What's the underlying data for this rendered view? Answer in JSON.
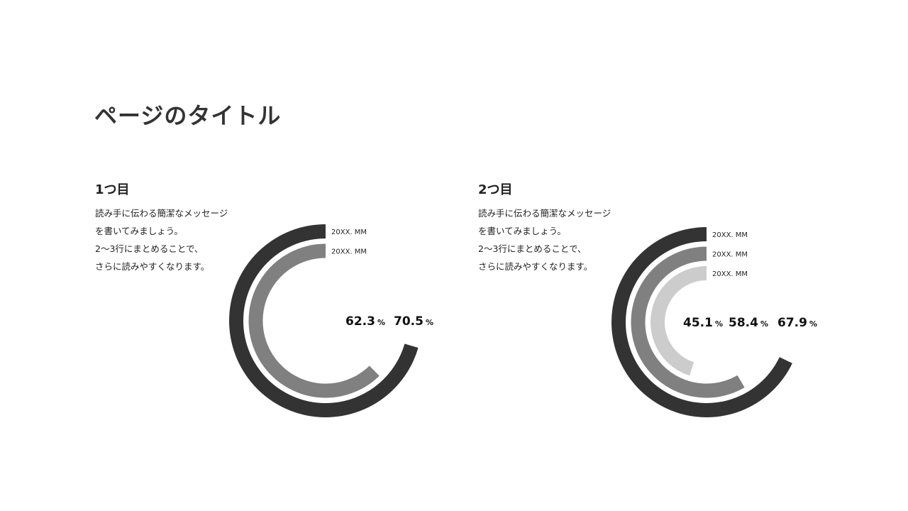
{
  "title": "ページのタイトル",
  "sections": [
    {
      "heading": "1つ目",
      "text": "読み手に伝わる簡潔なメッセージを書いてみましょう。\n2〜3行にまとめることで、\nさらに読みやすくなります。"
    },
    {
      "heading": "2つ目",
      "text": "読み手に伝わる簡潔なメッセージを書いてみましょう。\n2〜3行にまとめることで、\nさらに読みやすくなります。"
    }
  ],
  "chart_data": [
    {
      "type": "radial-bar",
      "unit": "%",
      "direction": "counterclockwise from top",
      "series": [
        {
          "name": "20XX. MM",
          "value": 70.5,
          "color": "#333333"
        },
        {
          "name": "20XX. MM",
          "value": 62.3,
          "color": "#808080"
        }
      ]
    },
    {
      "type": "radial-bar",
      "unit": "%",
      "direction": "counterclockwise from top",
      "series": [
        {
          "name": "20XX. MM",
          "value": 67.9,
          "color": "#333333"
        },
        {
          "name": "20XX. MM",
          "value": 58.4,
          "color": "#808080"
        },
        {
          "name": "20XX. MM",
          "value": 45.1,
          "color": "#cccccc"
        }
      ]
    }
  ]
}
